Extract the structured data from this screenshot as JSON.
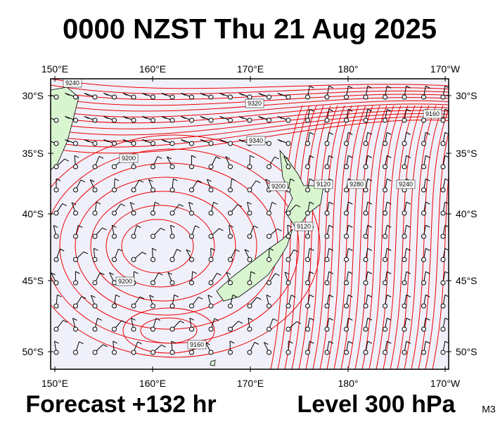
{
  "header": {
    "title": "0000 NZST Thu 21 Aug 2025"
  },
  "map": {
    "lon_labels": [
      "150°E",
      "160°E",
      "170°E",
      "180°",
      "170°W"
    ],
    "lat_labels": [
      "30°S",
      "35°S",
      "40°S",
      "45°S",
      "50°S"
    ],
    "contour_labels": [
      "9240",
      "9320",
      "9340",
      "9200",
      "9200",
      "9160",
      "9160",
      "9120",
      "9200",
      "9280",
      "9240",
      "9120"
    ]
  },
  "footer": {
    "forecast": "Forecast +132 hr",
    "level": "Level 300 hPa",
    "model": "M3"
  }
}
